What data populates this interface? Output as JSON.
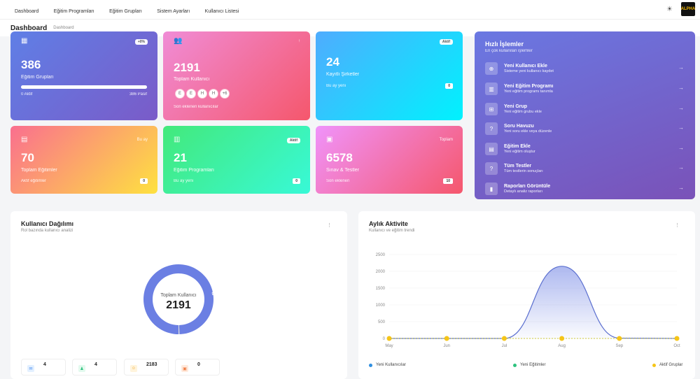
{
  "nav": {
    "items": [
      "Dashboard",
      "Eğitim Programları",
      "Eğitim Grupları",
      "Sistem Ayarları",
      "Kullanıcı Listesi"
    ],
    "logo_text": "ALPHA"
  },
  "subbar": {
    "title": "Dashboard",
    "breadcrumb": "Dashboard"
  },
  "cards": {
    "groups": {
      "badge": "+0%",
      "value": "386",
      "label": "Eğitim Grupları",
      "left": "0 Aktif",
      "right": "386 Pasif",
      "progress_pct": 100
    },
    "users": {
      "tag": "↑",
      "value": "2191",
      "label": "Toplam Kullanıcı",
      "avatars": [
        "E",
        "E",
        "H",
        "H",
        "+6"
      ],
      "footer": "Son eklenen kullanıcılar"
    },
    "companies": {
      "badge": "Aktif",
      "value": "24",
      "label": "Kayıtlı Şirketler",
      "footer": "Bu ay yeni",
      "count": "0"
    },
    "trainings": {
      "tag": "Bu ay",
      "value": "70",
      "label": "Toplam Eğitimler",
      "footer": "Aktif eğitimler",
      "count": "0"
    },
    "programs": {
      "badge": "Aktif",
      "value": "21",
      "label": "Eğitim Programları",
      "footer": "Bu ay yeni",
      "count": "0"
    },
    "exams": {
      "tag": "Toplam",
      "value": "6578",
      "label": "Sınav & Testler",
      "footer": "Son eklenen",
      "count": "10"
    }
  },
  "quick": {
    "title": "Hızlı İşlemler",
    "subtitle": "En çok kullanılan işlemler",
    "items": [
      {
        "name": "Yeni Kullanıcı Ekle",
        "desc": "Sisteme yeni kullanıcı kaydet",
        "icon": "user-add-icon"
      },
      {
        "name": "Yeni Eğitim Programı",
        "desc": "Yeni eğitim programı tanımla",
        "icon": "book-icon"
      },
      {
        "name": "Yeni Grup",
        "desc": "Yeni eğitim grubu ekle",
        "icon": "group-icon"
      },
      {
        "name": "Soru Havuzu",
        "desc": "Yeni soru ekle veya düzenle",
        "icon": "question-icon"
      },
      {
        "name": "Eğitim Ekle",
        "desc": "Yeni eğitim oluştur",
        "icon": "training-icon"
      },
      {
        "name": "Tüm Testler",
        "desc": "Tüm testlerin sonuçları",
        "icon": "test-icon"
      },
      {
        "name": "Raporları Görüntüle",
        "desc": "Detaylı analiz raporları",
        "icon": "chart-icon"
      }
    ]
  },
  "distribution": {
    "title": "Kullanıcı Dağılımı",
    "subtitle": "Rol bazında kullanıcı analizi",
    "center_label": "Toplam Kullanıcı",
    "center_value": "2191",
    "slice_label": "99.6%",
    "stats": [
      "4",
      "4",
      "2183",
      "0"
    ]
  },
  "activity": {
    "title": "Aylık Aktivite",
    "subtitle": "Kullanıcı ve eğitim trendi",
    "legend": [
      "Yeni Kullanıcılar",
      "Yeni Eğitimler",
      "Aktif Gruplar"
    ]
  },
  "chart_data": [
    {
      "type": "pie",
      "slices": [
        {
          "value": 99.6,
          "color": "#6b7fe3"
        },
        {
          "value": 0.4,
          "color": "#e0e0e0"
        }
      ]
    },
    {
      "type": "area",
      "categories": [
        "May",
        "Jun",
        "Jul",
        "Aug",
        "Sep",
        "Oct"
      ],
      "ylim": [
        0,
        2500
      ],
      "yticks": [
        0,
        500,
        1000,
        1500,
        2000,
        2500
      ],
      "series": [
        {
          "name": "Yeni Kullanıcılar",
          "values": [
            0,
            0,
            0,
            2150,
            10,
            0
          ],
          "color": "#5b6fcf"
        },
        {
          "name": "Yeni Eğitimler",
          "values": [
            0,
            0,
            0,
            0,
            0,
            0
          ],
          "color": "#2ec27e"
        },
        {
          "name": "Aktif Gruplar",
          "values": [
            0,
            0,
            0,
            0,
            0,
            0
          ],
          "color": "#f5c518"
        }
      ]
    }
  ]
}
